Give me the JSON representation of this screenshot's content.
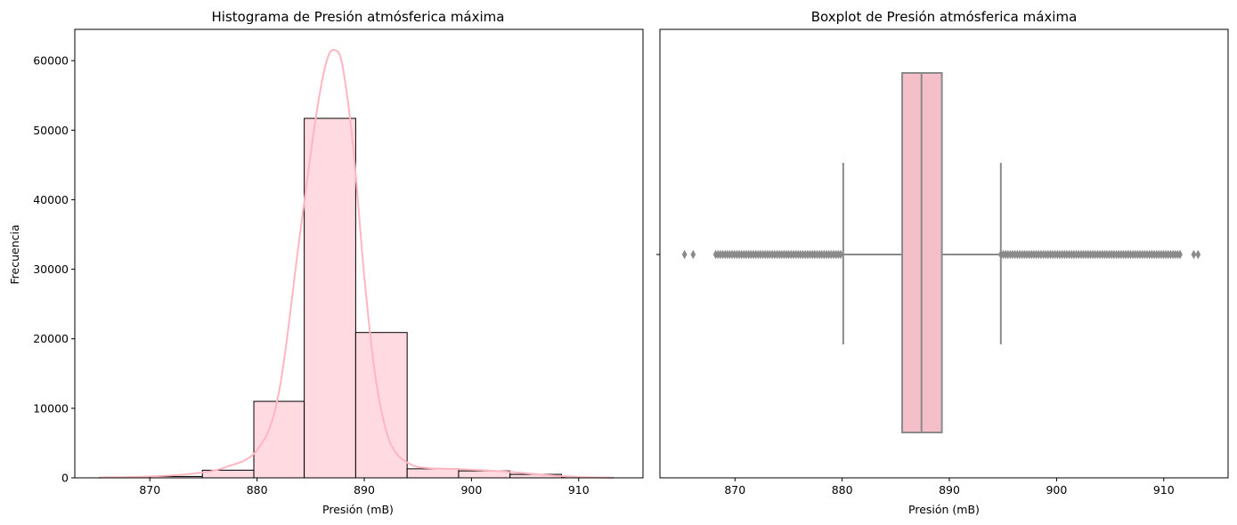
{
  "chart_data": [
    {
      "type": "bar",
      "subtype": "histogram_with_kde",
      "title": "Histograma de Presión atmósferica máxima",
      "xlabel": "Presión (mB)",
      "ylabel": "Frecuencia",
      "xlim": [
        863,
        916
      ],
      "ylim": [
        0,
        64500
      ],
      "xticks": [
        870,
        880,
        890,
        900,
        910
      ],
      "yticks": [
        0,
        10000,
        20000,
        30000,
        40000,
        50000,
        60000
      ],
      "bins": [
        {
          "x0": 865.3,
          "x1": 870.1,
          "value": 50
        },
        {
          "x0": 870.1,
          "x1": 874.9,
          "value": 200
        },
        {
          "x0": 874.9,
          "x1": 879.7,
          "value": 1100
        },
        {
          "x0": 879.7,
          "x1": 884.4,
          "value": 11000
        },
        {
          "x0": 884.4,
          "x1": 889.2,
          "value": 51700
        },
        {
          "x0": 889.2,
          "x1": 894.0,
          "value": 20900
        },
        {
          "x0": 894.0,
          "x1": 898.8,
          "value": 1300
        },
        {
          "x0": 898.8,
          "x1": 903.6,
          "value": 1000
        },
        {
          "x0": 903.6,
          "x1": 908.4,
          "value": 500
        },
        {
          "x0": 908.4,
          "x1": 913.2,
          "value": 50
        }
      ],
      "kde": {
        "x": [
          865.3,
          870,
          874,
          877,
          880,
          882,
          884,
          885.5,
          886.5,
          887.3,
          888,
          889,
          890,
          891,
          892,
          893,
          894.5,
          896,
          898,
          901,
          904,
          907,
          910,
          913.2
        ],
        "y": [
          50,
          200,
          600,
          1500,
          4000,
          12000,
          35000,
          52000,
          60000,
          61500,
          59000,
          47000,
          29000,
          15000,
          7000,
          3500,
          1800,
          1400,
          1300,
          1100,
          800,
          400,
          120,
          20
        ]
      },
      "colors": {
        "bar_fill": "#ffdae1",
        "bar_edge": "#000000",
        "kde_line": "#ffb6c1"
      }
    },
    {
      "type": "boxplot",
      "title": "Boxplot de Presión atmósferica máxima",
      "xlabel": "Presión (mB)",
      "xlim": [
        863,
        916
      ],
      "xticks": [
        870,
        880,
        890,
        900,
        910
      ],
      "box": {
        "q1": 885.6,
        "median": 887.4,
        "q3": 889.3,
        "whisker_low": 880.1,
        "whisker_high": 894.8
      },
      "outliers_low": {
        "isolated": [
          865.3,
          866.1
        ],
        "dense_range": [
          868.2,
          880.0
        ]
      },
      "outliers_high": {
        "dense_range": [
          894.8,
          911.7
        ],
        "isolated": [
          912.8,
          913.2
        ]
      },
      "colors": {
        "box_fill": "#f5bfca",
        "line": "#8a8a8a"
      }
    }
  ]
}
